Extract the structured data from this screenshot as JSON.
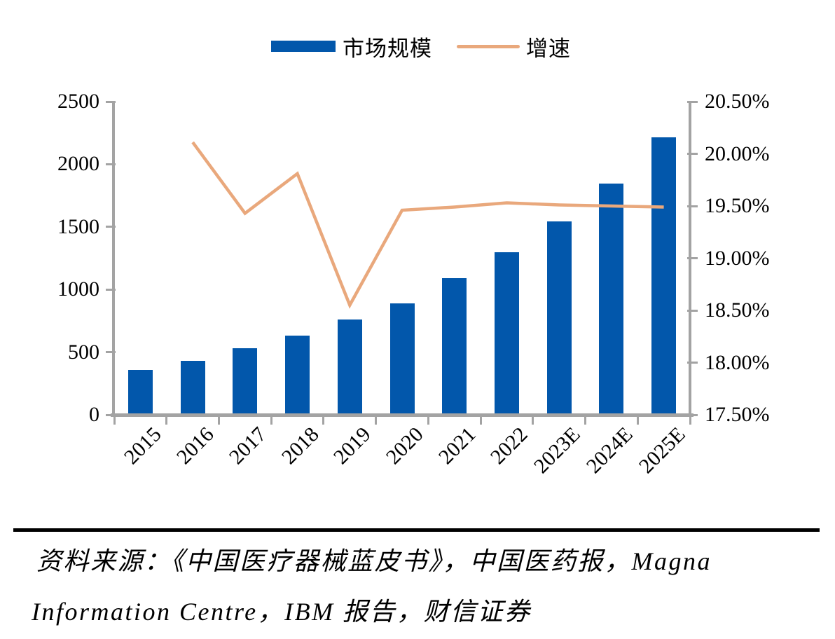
{
  "legend": {
    "items": [
      {
        "label": "市场规模",
        "swatch": "bar"
      },
      {
        "label": "增速",
        "swatch": "line"
      }
    ]
  },
  "chart_data": {
    "type": "bar",
    "title": "",
    "categories": [
      "2015",
      "2016",
      "2017",
      "2018",
      "2019",
      "2020",
      "2021",
      "2022",
      "2023E",
      "2024E",
      "2025E"
    ],
    "series": [
      {
        "name": "市场规模",
        "type": "bar",
        "y_axis": "left",
        "color": "#0257AB",
        "values": [
          358,
          432,
          530,
          632,
          760,
          890,
          1090,
          1300,
          1545,
          1848,
          2212
        ]
      },
      {
        "name": "增速",
        "type": "line",
        "y_axis": "right",
        "color": "#E9A87C",
        "unit": "%",
        "values": [
          null,
          20.11,
          19.43,
          19.81,
          18.55,
          19.46,
          19.49,
          19.53,
          19.51,
          19.5,
          19.49
        ]
      }
    ],
    "left_axis": {
      "min": 0,
      "max": 2500,
      "step": 500,
      "ticks": [
        "0",
        "500",
        "1000",
        "1500",
        "2000",
        "2500"
      ]
    },
    "right_axis": {
      "min": 17.5,
      "max": 20.5,
      "step": 0.5,
      "ticks": [
        "17.50%",
        "18.00%",
        "18.50%",
        "19.00%",
        "19.50%",
        "20.00%",
        "20.50%"
      ]
    },
    "legend_position": "top",
    "gridlines": false
  },
  "colors": {
    "bar": "#0257AB",
    "line": "#E9A87C",
    "axis": "#A3A3A3",
    "text": "#000000",
    "divider": "#000000"
  },
  "source": {
    "line1": "资料来源：《中国医疗器械蓝皮书》，中国医药报，Magna",
    "line2": "Information Centre，IBM 报告，财信证券"
  }
}
